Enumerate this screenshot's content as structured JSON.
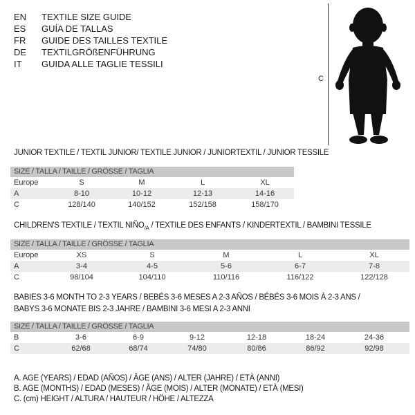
{
  "languages": [
    {
      "code": "EN",
      "title": "TEXTILE SIZE GUIDE"
    },
    {
      "code": "ES",
      "title": "GUÍA DE TALLAS"
    },
    {
      "code": "FR",
      "title": "GUIDE DES TAILLES TEXTILE"
    },
    {
      "code": "DE",
      "title": "TEXTILGRÖßENFÜHRUNG"
    },
    {
      "code": "IT",
      "title": "GUIDA ALLE TAGLIE TESSILI"
    }
  ],
  "figure": {
    "label": "C",
    "icon": "child-silhouette"
  },
  "header_label": "SIZE / TALLA / TAILLE / GRÖSSE / TAGLIA",
  "junior": {
    "title": "JUNIOR TEXTILE / TEXTIL JUNIOR/ TEXTILE JUNIOR / JUNIORTEXTIL / JUNIOR TESSILE",
    "rows": [
      {
        "label": "Europe",
        "values": [
          "S",
          "M",
          "L",
          "XL"
        ]
      },
      {
        "label": "A",
        "values": [
          "8-10",
          "10-12",
          "12-13",
          "14-16"
        ]
      },
      {
        "label": "C",
        "values": [
          "128/140",
          "140/152",
          "152/158",
          "158/170"
        ]
      }
    ]
  },
  "children": {
    "title_a": "CHILDREN'S TEXTILE / TEXTIL NIÑO",
    "title_sub": "/A",
    "title_b": " / TEXTILE DES ENFANTS / KINDERTEXTIL / BAMBINI TESSILE",
    "rows": [
      {
        "label": "Europe",
        "values": [
          "XS",
          "S",
          "M",
          "L",
          "XL"
        ]
      },
      {
        "label": "A",
        "values": [
          "3-4",
          "4-5",
          "5-6",
          "6-7",
          "7-8"
        ]
      },
      {
        "label": "C",
        "values": [
          "98/104",
          "104/110",
          "110/116",
          "116/122",
          "122/128"
        ]
      }
    ]
  },
  "babies": {
    "title_1": "BABIES 3-6 MONTH TO 2-3 YEARS / BEBÉS 3-6 MESES A 2-3 AÑOS / BÉBÉS 3-6 MOIS À 2-3 ANS /",
    "title_2": "BABYS 3-6 MONATE BIS 2-3 JAHRE / BAMBINI 3-6 MESI A 2-3 ANNI",
    "rows": [
      {
        "label": "B",
        "values": [
          "3-6",
          "6-9",
          "9-12",
          "12-18",
          "18-24",
          "24-36"
        ]
      },
      {
        "label": "C",
        "values": [
          "62/68",
          "68/74",
          "74/80",
          "80/86",
          "86/92",
          "92/98"
        ]
      }
    ]
  },
  "legend": [
    "A. AGE (YEARS) / EDAD (AÑOS) / ÂGE (ANS) / ALTER (JAHRE) / ETÀ (ANNI)",
    "B. AGE (MONTHS) / EDAD (MESES) / ÂGE (MOIS) / ALTER (MONATE) / ETÀ (MESI)",
    "C. (cm) HEIGHT / ALTURA / HAUTEUR / HÖHE / ALTEZZA"
  ]
}
